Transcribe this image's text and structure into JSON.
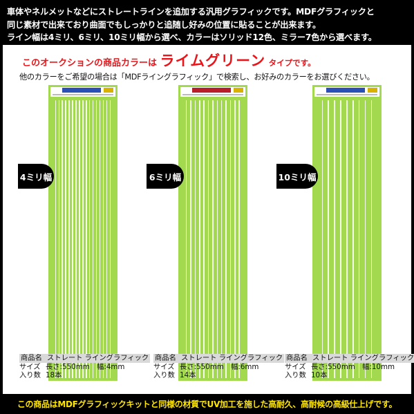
{
  "header": {
    "lines": [
      "車体やネルメットなどにストレートラインを追加する汎用グラフィックです。MDFグラフィックと",
      "同じ素材で出来ており曲面でもしっかりと追随し好みの位置に貼ることが出来ます。",
      "ライン幅は4ミリ、6ミリ、10ミリ幅から選べ、カラーはソリッド12色、ミラー7色から選べます。"
    ]
  },
  "notice": {
    "prefix": "このオークションの商品カラーは",
    "color_name": "ライムグリーン",
    "suffix": "タイプです。",
    "search_hint": "他のカラーをご希望の場合は「MDFライングラフィック」で検索し、お好みのカラーをお選びください。"
  },
  "products": [
    {
      "width_label": "4ミリ幅",
      "stripe_count": 18,
      "label_color": "#2a4fb5",
      "spec": {
        "name_key": "商品名",
        "name_val": "ストレート ライングラフィック",
        "size_key": "サイズ",
        "size_val": "長さ:550mm　幅:4mm",
        "qty_key": "入り数",
        "qty_val": "18本"
      }
    },
    {
      "width_label": "6ミリ幅",
      "stripe_count": 14,
      "label_color": "#b81d2a",
      "spec": {
        "name_key": "商品名",
        "name_val": "ストレート ライングラフィック",
        "size_key": "サイズ",
        "size_val": "長さ:550mm　幅:6mm",
        "qty_key": "入り数",
        "qty_val": "14本"
      }
    },
    {
      "width_label": "10ミリ幅",
      "stripe_count": 10,
      "label_color": "#2a4fb5",
      "spec": {
        "name_key": "商品名",
        "name_val": "ストレート ライングラフィック",
        "size_key": "サイズ",
        "size_val": "長さ:550mm　幅:10mm",
        "qty_key": "入り数",
        "qty_val": "10本"
      }
    }
  ],
  "footer": "この商品はMDFグラフィックキットと同様の材質でUV加工を施した高耐久、高耐候の高級仕上げです。",
  "colors": {
    "lime": "#a2d94f",
    "accent_red": "#e8151a",
    "footer_yellow": "#ffe600"
  }
}
